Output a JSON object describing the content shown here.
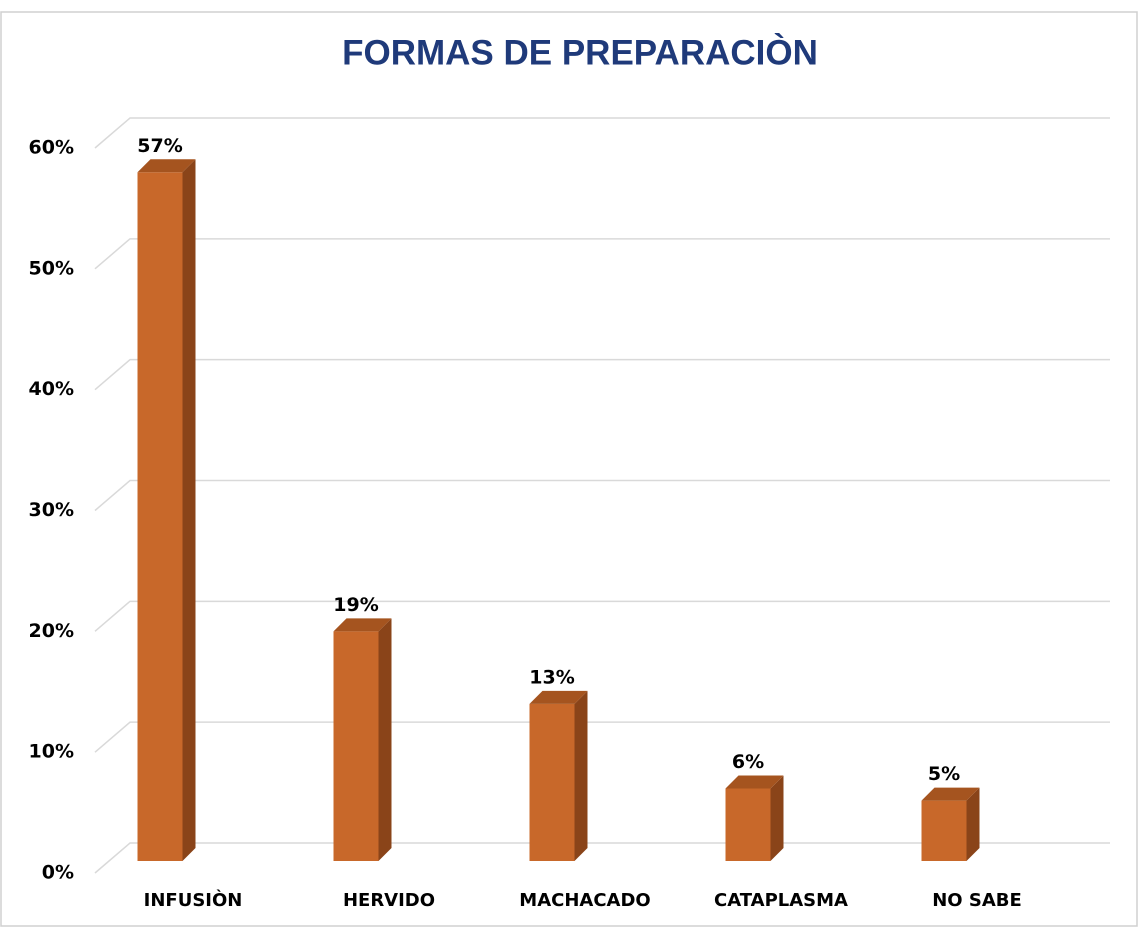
{
  "chart_data": {
    "type": "bar3d",
    "title": "FORMAS DE PREPARACIÒN",
    "categories": [
      "INFUSIÒN",
      "HERVIDO",
      "MACHACADO",
      "CATAPLASMA",
      "NO SABE"
    ],
    "values": [
      57,
      19,
      13,
      6,
      5
    ],
    "value_labels": [
      "57%",
      "19%",
      "13%",
      "6%",
      "5%"
    ],
    "color": "#c8682a",
    "ylim": [
      0,
      60
    ],
    "yticks": [
      {
        "value": 0,
        "label": "0%"
      },
      {
        "value": 10,
        "label": "10%"
      },
      {
        "value": 20,
        "label": "20%"
      },
      {
        "value": 30,
        "label": "30%"
      },
      {
        "value": 40,
        "label": "40%"
      },
      {
        "value": 50,
        "label": "50%"
      },
      {
        "value": 60,
        "label": "60%"
      }
    ],
    "grid": true
  }
}
